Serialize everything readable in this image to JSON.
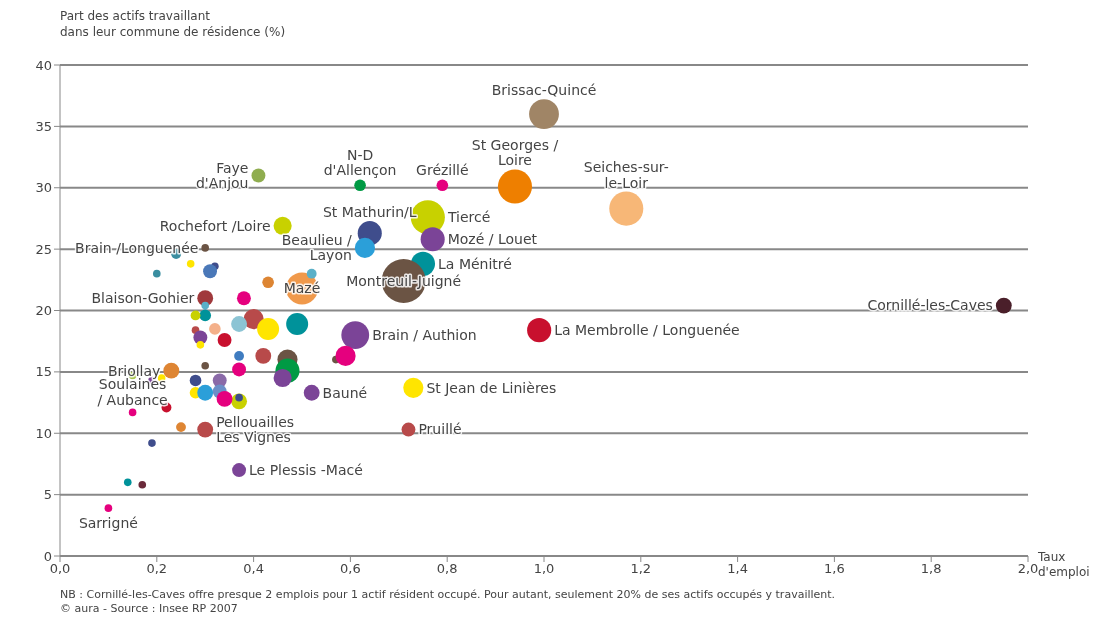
{
  "chart_data": {
    "type": "bubble",
    "ylabel": "Part des actifs travaillant\ndans leur commune de résidence (%)",
    "xlabel": "Taux\nd'emploi",
    "x": [
      1.0,
      0.41,
      0.62,
      0.79,
      0.94,
      1.17,
      0.76,
      0.46,
      0.64,
      0.77,
      0.63,
      0.75,
      0.71,
      0.5,
      0.3,
      0.3,
      1.95,
      0.99,
      0.61,
      0.23,
      0.73,
      0.52,
      0.15,
      0.3,
      0.72,
      0.37,
      0.1,
      0.24,
      0.27,
      0.2,
      0.32,
      0.31,
      0.43,
      0.52,
      0.38,
      0.3,
      0.3,
      0.3,
      0.28,
      0.4,
      0.43,
      0.37,
      0.49,
      0.32,
      0.28,
      0.29,
      0.34,
      0.29,
      0.37,
      0.42,
      0.47,
      0.57,
      0.59,
      0.37,
      0.3,
      0.47,
      0.46,
      0.15,
      0.19,
      0.21,
      0.28,
      0.33,
      0.33,
      0.28,
      0.3,
      0.37,
      0.34,
      0.37,
      0.22,
      0.25,
      0.19,
      0.14,
      0.17
    ],
    "values": [
      36,
      31.0,
      30.2,
      30.2,
      30.1,
      28.3,
      27.6,
      26.9,
      26.3,
      25.8,
      25.1,
      23.8,
      22.4,
      21.8,
      21.0,
      25.1,
      20.4,
      18.4,
      18.0,
      15.1,
      13.7,
      13.3,
      11.7,
      10.3,
      10.3,
      7.0,
      3.9,
      24.6,
      23.8,
      23.0,
      23.6,
      23.2,
      22.3,
      23.0,
      21.0,
      20.4,
      19.8,
      19.6,
      19.6,
      19.3,
      18.5,
      18.9,
      18.9,
      18.5,
      18.4,
      17.8,
      17.6,
      17.2,
      16.3,
      16.3,
      16.0,
      16.0,
      16.3,
      15.2,
      15.5,
      15.1,
      14.5,
      14.7,
      14.3,
      14.5,
      14.3,
      14.3,
      13.4,
      13.3,
      13.3,
      12.6,
      12.8,
      12.9,
      12.1,
      10.5,
      9.2,
      6.0,
      5.8
    ],
    "sizes": [
      0.46,
      0.1,
      0.07,
      0.07,
      0.6,
      0.6,
      0.6,
      0.17,
      0.3,
      0.3,
      0.21,
      0.3,
      1,
      0.53,
      0.13,
      0.03,
      0.13,
      0.3,
      0.4,
      0.13,
      0.21,
      0.13,
      0.03,
      0.13,
      0.1,
      0.1,
      0.03,
      0.05,
      0.03,
      0.03,
      0.03,
      0.1,
      0.07,
      0.05,
      0.1,
      0.03,
      0.03,
      0.07,
      0.05,
      0.21,
      0.25,
      0.13,
      0.25,
      0.07,
      0.03,
      0.1,
      0.1,
      0.03,
      0.05,
      0.13,
      0.21,
      0.03,
      0.21,
      0.1,
      0.03,
      0.3,
      0.17,
      0.03,
      0.03,
      0.03,
      0.07,
      0.1,
      0.1,
      0.07,
      0.13,
      0.13,
      0.13,
      0.03,
      0.05,
      0.05,
      0.03,
      0.03,
      0.03
    ],
    "colors": [
      "#a08566",
      "#8fad4f",
      "#009a44",
      "#e5007e",
      "#ee7f00",
      "#f7b777",
      "#c8d100",
      "#c8d100",
      "#3f4d8c",
      "#7b4497",
      "#2b9fd9",
      "#00929a",
      "#6b5444",
      "#f0994b",
      "#a0393c",
      "#6b5444",
      "#4a1f2a",
      "#c8102e",
      "#7b4497",
      "#de8533",
      "#ffe500",
      "#7b4497",
      "#e5007e",
      "#b84a4a",
      "#b84a4a",
      "#7b4497",
      "#e5007e",
      "#3a8ea0",
      "#ffe500",
      "#3a8ea0",
      "#3f4d8c",
      "#4a78b8",
      "#dd8533",
      "#5ab0c8",
      "#e5007e",
      "#5ab0c8",
      "#90a8d0",
      "#00929a",
      "#c8d100",
      "#b84a4a",
      "#ffe500",
      "#8cc4d4",
      "#00929a",
      "#f4b08a",
      "#b84a4a",
      "#7b4497",
      "#c8102e",
      "#ffe500",
      "#3f7cc0",
      "#b84a4a",
      "#6b5444",
      "#6b5444",
      "#e5007e",
      "#e5007e",
      "#6b5444",
      "#009a44",
      "#7b4497",
      "#a8c64f",
      "#7b4497",
      "#ffe500",
      "#3f4d8c",
      "#8a6aa8",
      "#6c8fc8",
      "#ffe500",
      "#2b9fd9",
      "#c8d100",
      "#e5007e",
      "#3f4d8c",
      "#c8102e",
      "#de8533",
      "#3f4d8c",
      "#00929a",
      "#6b2a3a"
    ],
    "xlim": [
      0,
      2
    ],
    "xticks": [
      {
        "value": 0,
        "label": "0,0"
      },
      {
        "value": 0.2,
        "label": "0,2"
      },
      {
        "value": 0.4,
        "label": "0,4"
      },
      {
        "value": 0.6,
        "label": "0,6"
      },
      {
        "value": 0.8,
        "label": "0,8"
      },
      {
        "value": 1,
        "label": "1,0"
      },
      {
        "value": 1.2,
        "label": "1,2"
      },
      {
        "value": 1.4,
        "label": "1,4"
      },
      {
        "value": 1.6,
        "label": "1,6"
      },
      {
        "value": 1.8,
        "label": "1,8"
      },
      {
        "value": 2,
        "label": "2,0"
      }
    ],
    "ylim": [
      0,
      40
    ],
    "yticks": [
      0,
      5,
      10,
      15,
      20,
      25,
      30,
      35,
      40
    ],
    "grid": "y",
    "legend": false,
    "annotations": [
      {
        "text": "Brissac-Quincé",
        "x": 1.0,
        "y": 36
      },
      {
        "text": "Faye\nd'Anjou",
        "x": 0.41,
        "y": 31.0
      },
      {
        "text": "N-D\nd'Allençon",
        "x": 0.62,
        "y": 30.2
      },
      {
        "text": "Grézillé",
        "x": 0.79,
        "y": 30.2
      },
      {
        "text": "St Georges /\nLoire",
        "x": 0.94,
        "y": 30.1
      },
      {
        "text": "Seiches-sur-\nle-Loir",
        "x": 1.17,
        "y": 28.3
      },
      {
        "text": "Tiercé",
        "x": 0.76,
        "y": 27.6
      },
      {
        "text": "Rochefort /Loire",
        "x": 0.46,
        "y": 26.9
      },
      {
        "text": "St Mathurin/L",
        "x": 0.64,
        "y": 26.3
      },
      {
        "text": "Mozé / Louet",
        "x": 0.77,
        "y": 25.8
      },
      {
        "text": "Beaulieu /\nLayon",
        "x": 0.63,
        "y": 25.1
      },
      {
        "text": "La Ménitré",
        "x": 0.75,
        "y": 23.8
      },
      {
        "text": "Montreuil-Juigné",
        "x": 0.71,
        "y": 22.4
      },
      {
        "text": "Mazé",
        "x": 0.5,
        "y": 21.8
      },
      {
        "text": "Blaison-Gohier",
        "x": 0.3,
        "y": 21.0
      },
      {
        "text": "Brain /Longuenée",
        "x": 0.3,
        "y": 25.1
      },
      {
        "text": "Cornillé-les-Caves",
        "x": 1.95,
        "y": 20.4
      },
      {
        "text": "La Membrolle / Longuenée",
        "x": 0.99,
        "y": 18.4
      },
      {
        "text": "Brain / Authion",
        "x": 0.61,
        "y": 18.0
      },
      {
        "text": "Briollay",
        "x": 0.23,
        "y": 15.1
      },
      {
        "text": "St Jean de Linières",
        "x": 0.73,
        "y": 13.7
      },
      {
        "text": "Bauné",
        "x": 0.52,
        "y": 13.3
      },
      {
        "text": "Soulaines\n/ Aubance",
        "x": 0.15,
        "y": 11.7
      },
      {
        "text": "Pellouailles\nLes Vignes",
        "x": 0.3,
        "y": 10.3
      },
      {
        "text": "Pruillé",
        "x": 0.72,
        "y": 10.3
      },
      {
        "text": "Le Plessis -Macé",
        "x": 0.37,
        "y": 7.0
      },
      {
        "text": "Sarrigné",
        "x": 0.1,
        "y": 3.9
      },
      "NB : Cornillé-les-Caves offre presque 2 emplois pour 1 actif résident occupé. Pour autant, seulement 20%  de ses actifs occupés y travaillent.",
      "© aura - Source : Insee RP 2007"
    ]
  }
}
